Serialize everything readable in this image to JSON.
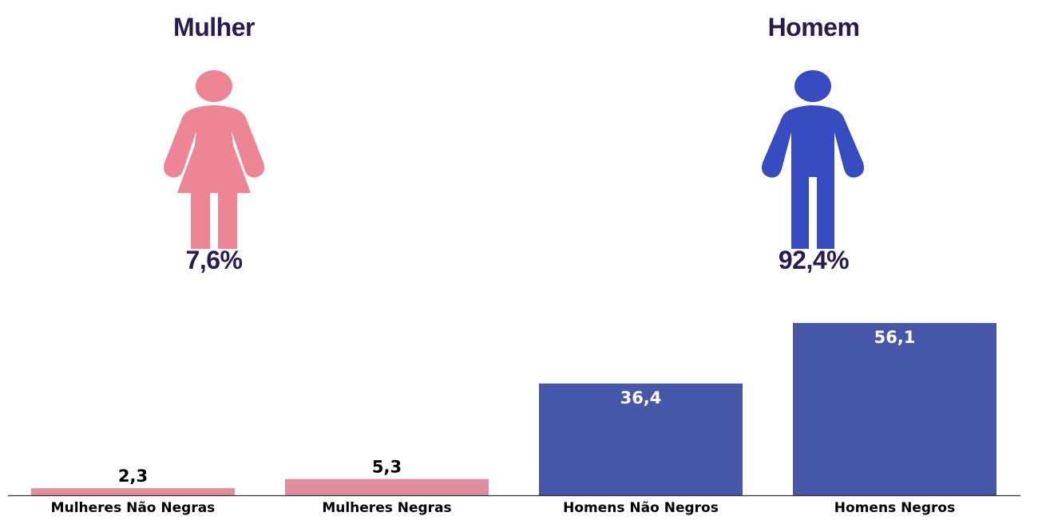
{
  "colors": {
    "female": "#ee8595",
    "male": "#364cc0",
    "bar_female": "#e08e9c",
    "bar_male": "#4656a9",
    "title_text": "#2b1a4f"
  },
  "infographic": {
    "female": {
      "title": "Mulher",
      "percentage": "7,6%",
      "icon": "woman-icon"
    },
    "male": {
      "title": "Homem",
      "percentage": "92,4%",
      "icon": "man-icon"
    }
  },
  "chart_data": {
    "type": "bar",
    "categories": [
      "Mulheres Não Negras",
      "Mulheres Negras",
      "Homens Não Negros",
      "Homens Negros"
    ],
    "values": [
      2.3,
      5.3,
      36.4,
      56.1
    ],
    "value_labels": [
      "2,3",
      "5,3",
      "36,4",
      "56,1"
    ],
    "title": "",
    "xlabel": "",
    "ylabel": "",
    "ylim": [
      0,
      60
    ],
    "grid": false,
    "legend": "none"
  }
}
